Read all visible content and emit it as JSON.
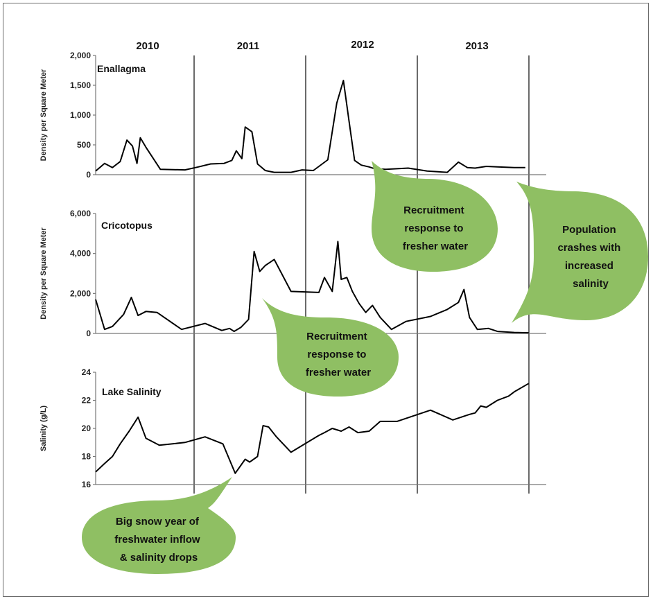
{
  "years": [
    "2010",
    "2011",
    "2012",
    "2013"
  ],
  "annotations": [
    {
      "id": "ann-enallagma",
      "lines": [
        "Recruitment",
        "response to",
        "fresher water"
      ]
    },
    {
      "id": "ann-crash",
      "lines": [
        "Population",
        "crashes with",
        "increased",
        "salinity"
      ]
    },
    {
      "id": "ann-cricotopus",
      "lines": [
        "Recruitment",
        "response to",
        "fresher water"
      ]
    },
    {
      "id": "ann-snow",
      "lines": [
        "Big snow year of",
        "freshwater inflow",
        "& salinity drops"
      ]
    }
  ],
  "colors": {
    "bubble": "#8fbf63",
    "line": "#000000",
    "divider": "#444444"
  },
  "chart_data": [
    {
      "type": "line",
      "title": "Enallagma",
      "ylabel": "Density per Square Meter",
      "ylim": [
        0,
        2000
      ],
      "yticks": [
        "0",
        "500",
        "1,000",
        "1,500",
        "2,000"
      ],
      "ytick_values": [
        0,
        500,
        1000,
        1500,
        2000
      ],
      "x": [
        2010.0,
        2010.08,
        2010.15,
        2010.22,
        2010.28,
        2010.33,
        2010.37,
        2010.4,
        2010.45,
        2010.58,
        2010.8,
        2010.92,
        2011.03,
        2011.15,
        2011.22,
        2011.26,
        2011.31,
        2011.34,
        2011.4,
        2011.45,
        2011.52,
        2011.6,
        2011.75,
        2011.85,
        2011.95,
        2012.08,
        2012.16,
        2012.22,
        2012.27,
        2012.32,
        2012.38,
        2012.45,
        2012.5,
        2012.6,
        2012.8,
        2012.97,
        2013.15,
        2013.25,
        2013.33,
        2013.4,
        2013.5,
        2013.6,
        2013.75,
        2013.85
      ],
      "y": [
        60,
        190,
        120,
        220,
        580,
        480,
        190,
        620,
        460,
        90,
        80,
        130,
        180,
        190,
        240,
        400,
        270,
        800,
        720,
        180,
        70,
        40,
        40,
        80,
        70,
        250,
        1200,
        1580,
        900,
        240,
        160,
        130,
        100,
        90,
        110,
        60,
        40,
        210,
        120,
        110,
        140,
        130,
        120,
        120
      ]
    },
    {
      "type": "line",
      "title": "Cricotopus",
      "ylabel": "Density per Square Meter",
      "ylim": [
        0,
        6000
      ],
      "yticks": [
        "0",
        "2,000",
        "4,000",
        "6,000"
      ],
      "ytick_values": [
        0,
        2000,
        4000,
        6000
      ],
      "x": [
        2010.0,
        2010.08,
        2010.15,
        2010.25,
        2010.32,
        2010.38,
        2010.45,
        2010.55,
        2010.77,
        2010.98,
        2011.13,
        2011.2,
        2011.24,
        2011.3,
        2011.37,
        2011.42,
        2011.47,
        2011.52,
        2011.6,
        2011.75,
        2012.0,
        2012.05,
        2012.12,
        2012.17,
        2012.2,
        2012.25,
        2012.3,
        2012.36,
        2012.42,
        2012.48,
        2012.55,
        2012.65,
        2012.78,
        2013.0,
        2013.15,
        2013.25,
        2013.3,
        2013.35,
        2013.42,
        2013.52,
        2013.6,
        2013.75,
        2013.88
      ],
      "y": [
        1700,
        200,
        350,
        950,
        1800,
        900,
        1100,
        1050,
        200,
        500,
        150,
        250,
        100,
        300,
        700,
        4100,
        3100,
        3400,
        3700,
        2100,
        2050,
        2800,
        2100,
        4600,
        2700,
        2800,
        2100,
        1500,
        1050,
        1400,
        800,
        200,
        600,
        850,
        1200,
        1550,
        2200,
        800,
        200,
        250,
        100,
        50,
        30
      ]
    },
    {
      "type": "line",
      "title": "Lake Salinity",
      "ylabel": "Salinity (g/L)",
      "ylim": [
        16,
        24
      ],
      "yticks": [
        "16",
        "18",
        "20",
        "22",
        "24"
      ],
      "ytick_values": [
        16,
        18,
        20,
        22,
        24
      ],
      "x": [
        2010.0,
        2010.08,
        2010.15,
        2010.22,
        2010.3,
        2010.38,
        2010.45,
        2010.57,
        2010.8,
        2010.98,
        2011.14,
        2011.25,
        2011.34,
        2011.38,
        2011.45,
        2011.5,
        2011.55,
        2011.62,
        2011.75,
        2012.0,
        2012.05,
        2012.12,
        2012.2,
        2012.27,
        2012.35,
        2012.45,
        2012.55,
        2012.7,
        2013.0,
        2013.2,
        2013.35,
        2013.4,
        2013.45,
        2013.5,
        2013.6,
        2013.7,
        2013.75,
        2013.88
      ],
      "y": [
        16.9,
        17.5,
        18.0,
        18.9,
        19.8,
        20.8,
        19.3,
        18.8,
        19.0,
        19.4,
        18.9,
        16.8,
        17.8,
        17.6,
        18.0,
        20.2,
        20.1,
        19.4,
        18.3,
        19.5,
        19.7,
        20.0,
        19.8,
        20.1,
        19.7,
        19.8,
        20.5,
        20.5,
        21.3,
        20.6,
        21.0,
        21.1,
        21.6,
        21.5,
        22.0,
        22.3,
        22.6,
        23.2
      ]
    }
  ]
}
